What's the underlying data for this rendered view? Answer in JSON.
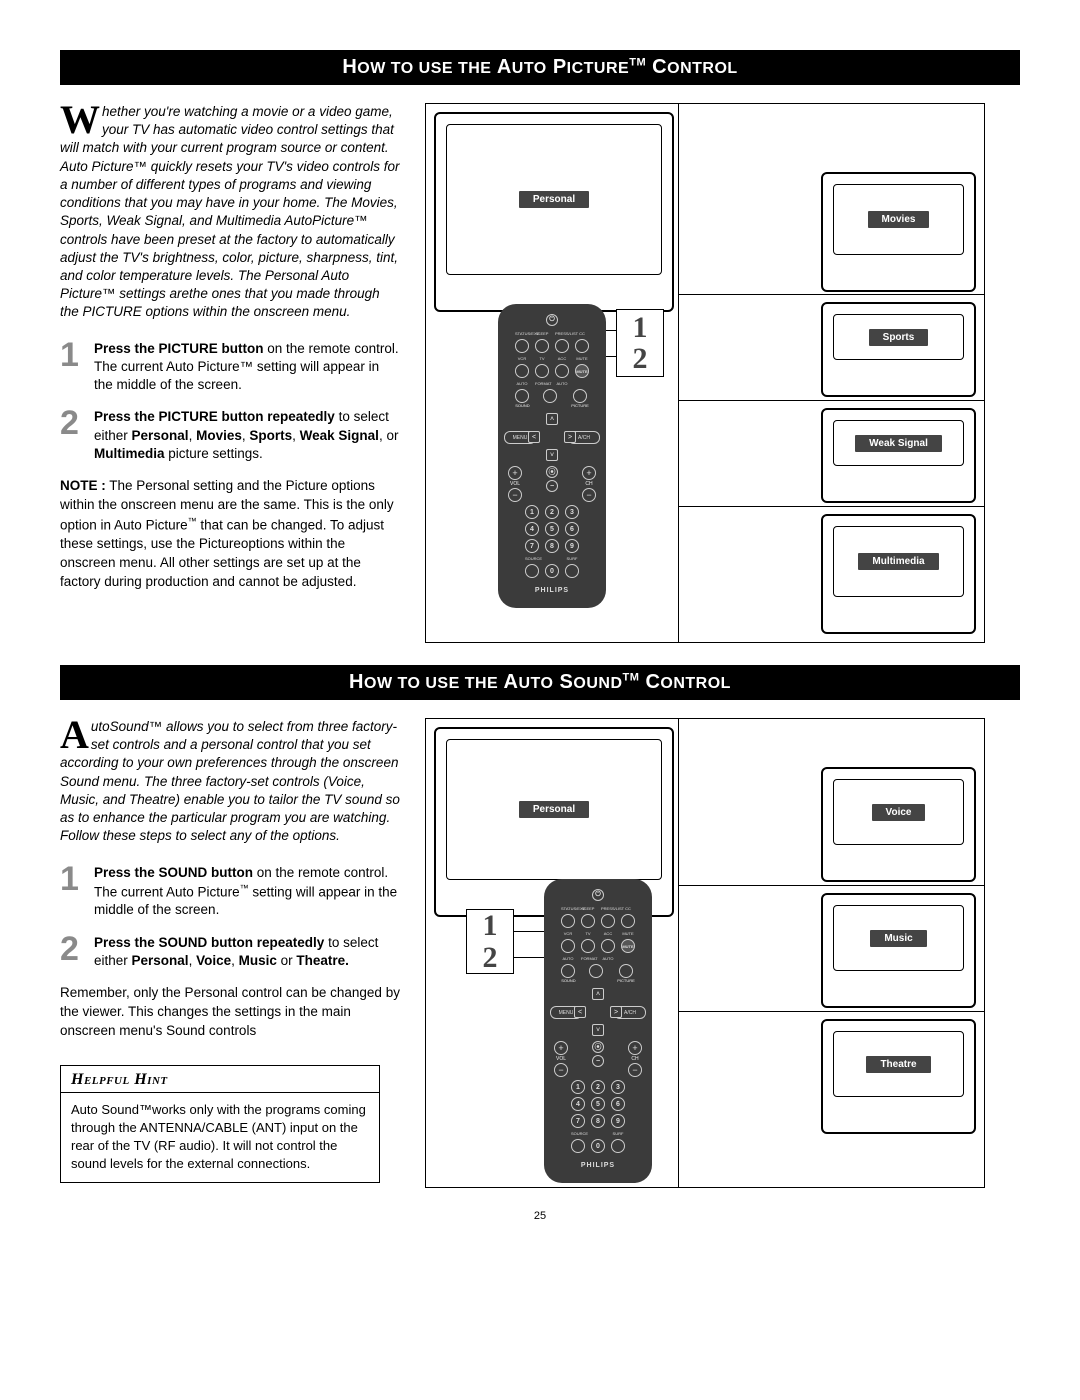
{
  "page_number": "25",
  "section1": {
    "banner_parts": [
      "H",
      "OW TO USE THE",
      "A",
      "UTO",
      "P",
      "ICTURE",
      "TM",
      "C",
      "ONTROL"
    ],
    "dropcap": "W",
    "intro": "hether you're watching a movie or a video game, your TV has automatic video control settings that will match with your current program source or content. Auto Picture™ quickly resets your TV's video controls for a number of different types of programs and viewing conditions that you may have in your home. The Movies, Sports, Weak Signal, and Multimedia AutoPicture™ controls have been preset at the factory to automatically adjust the TV's brightness, color, picture, sharpness, tint, and color temperature levels.  The Personal Auto Picture™  settings arethe ones that you made through the PICTURE options within the onscreen menu.",
    "steps": [
      {
        "num": "1",
        "bold": "Press the PICTURE button",
        "rest": " on the remote control. The current Auto Picture™ setting will appear in the middle of the screen."
      },
      {
        "num": "2",
        "html": "<b>Press the PICTURE button repeatedly</b> to select either <b>Personal</b>, <b>Movies</b>, <b>Sports</b>, <b>Weak Signal</b>, or <b>Multimedia</b> picture settings."
      }
    ],
    "note_html": "<b>NOTE :</b> The Personal setting and the Picture options within the onscreen menu are the same. This is the only option in Auto Picture<span class='tm-sm'>™</span> that can be changed. To adjust these settings, use the Pictureoptions within the onscreen menu. All other settings are set up at the factory during production and cannot be adjusted.",
    "tv_tags": [
      "Personal",
      "Movies",
      "Sports",
      "Weak Signal",
      "Multimedia"
    ],
    "callout": [
      "1",
      "2"
    ]
  },
  "section2": {
    "banner_parts": [
      "H",
      "OW TO USE THE",
      "A",
      "UTO",
      "S",
      "OUND",
      "TM",
      "C",
      "ONTROL"
    ],
    "dropcap": "A",
    "intro": "utoSound™ allows you to select from three factory-set controls and a personal control that you set according to your own preferences through the onscreen Sound menu. The three factory-set controls (Voice, Music, and Theatre) enable you to tailor the TV sound so as to enhance the particular program you are watching. Follow these steps to select any of the options.",
    "steps": [
      {
        "num": "1",
        "html": "<b>Press the SOUND button</b> on the remote control. The current Auto Picture<span class='tm-sm'>™</span> setting will appear in the middle of the screen."
      },
      {
        "num": "2",
        "html": "<b>Press the SOUND button repeatedly</b> to select either <b>Personal</b>, <b>Voice</b>, <b>Music</b> or <b>Theatre.</b>"
      }
    ],
    "post": "Remember, only the Personal control can be changed by the viewer.  This changes the settings in the main onscreen menu's Sound controls",
    "hint_title": "Helpful  Hint",
    "hint_body": "Auto Sound™works only with the programs coming through the ANTENNA/CABLE (ANT) input on the rear of the TV (RF audio).  It will not control the sound levels for the external connections.",
    "tv_tags": [
      "Personal",
      "Voice",
      "Music",
      "Theatre"
    ],
    "callout": [
      "1",
      "2"
    ]
  },
  "remote": {
    "row1_labels": [
      "STATUS/EXIT",
      "SLEEP",
      "PRESS/LIST",
      "CC"
    ],
    "row2_labels": [
      "VCR",
      "TV",
      "ACC",
      "MUTE"
    ],
    "row3_labels": [
      "AUTO",
      "FORMAT",
      "AUTO",
      ""
    ],
    "sound": "SOUND",
    "picture": "PICTURE",
    "menu": "MENU",
    "auto": "A/CH",
    "brand": "PHILIPS",
    "nums": [
      "1",
      "2",
      "3",
      "4",
      "5",
      "6",
      "7",
      "8",
      "9",
      "0"
    ],
    "bottom_labels": [
      "SOURCE",
      "",
      "SURF"
    ]
  },
  "colors": {
    "tag_bg": "#444444",
    "grey_num": "#8a8a8a",
    "remote_bg": "#3b3b3b"
  }
}
